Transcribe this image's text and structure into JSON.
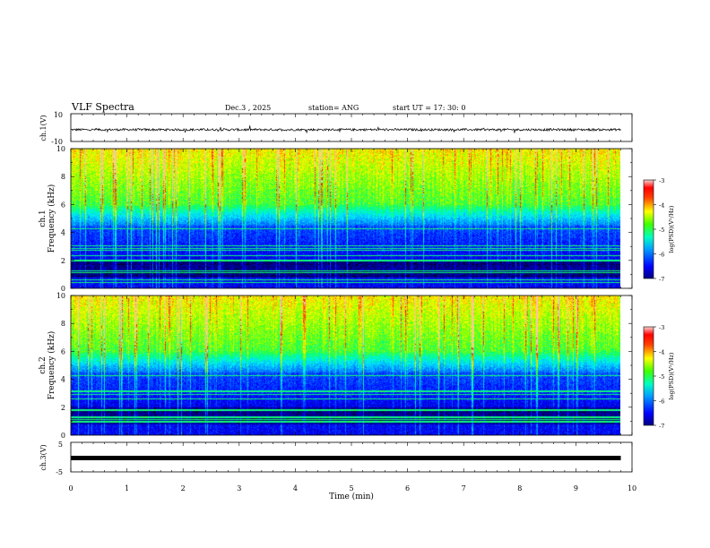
{
  "header": {
    "title": "VLF Spectra",
    "date": "Dec.3  , 2025",
    "station": "station= ANG",
    "start": "start  UT  =    17: 30: 0"
  },
  "colors": {
    "spectrogram": [
      "#000000",
      "#00008b",
      "#0000ff",
      "#0080ff",
      "#00ffff",
      "#00ff80",
      "#80ff00",
      "#ffff00",
      "#ff8000",
      "#ff0000",
      "#ffc0c0"
    ]
  },
  "chart_data": [
    {
      "type": "line",
      "name": "ch1-waveform",
      "ylabel": "ch.1(V)",
      "ylim": [
        -10,
        10
      ],
      "ytick_labels": [
        "10",
        "-10"
      ],
      "xlim": [
        0,
        10
      ],
      "baseline": -1.5,
      "noise_amplitude": 0.8
    },
    {
      "type": "heatmap",
      "name": "ch1-spectrogram",
      "ylabel_line1": "ch.1",
      "ylabel_line2": "Frequency  (kHz)",
      "ylim": [
        0,
        10
      ],
      "yticks": [
        0,
        2,
        4,
        6,
        8,
        10
      ],
      "ytick_labels": [
        "0",
        "2",
        "4",
        "6",
        "8",
        "10"
      ],
      "xlim": [
        0,
        10
      ],
      "data_end": 9.8,
      "colorbar": {
        "label": "log(PSD)(V²/Hz)",
        "range": [
          -7,
          -3
        ],
        "ticks": [
          -7,
          -6,
          -5,
          -4,
          -3
        ],
        "tick_labels": [
          "-7",
          "-6",
          "-5",
          "-4",
          "-3"
        ]
      }
    },
    {
      "type": "heatmap",
      "name": "ch2-spectrogram",
      "ylabel_line1": "ch.2",
      "ylabel_line2": "Frequency  (kHz)",
      "ylim": [
        0,
        10
      ],
      "yticks": [
        0,
        2,
        4,
        6,
        8,
        10
      ],
      "ytick_labels": [
        "0",
        "2",
        "4",
        "6",
        "8",
        "10"
      ],
      "xlim": [
        0,
        10
      ],
      "data_end": 9.8,
      "colorbar": {
        "label": "log(PSD)(V²/Hz)",
        "range": [
          -7,
          -3
        ],
        "ticks": [
          -7,
          -6,
          -5,
          -4,
          -3
        ],
        "tick_labels": [
          "-7",
          "-6",
          "-5",
          "-4",
          "-3"
        ]
      }
    },
    {
      "type": "line",
      "name": "ch3-level",
      "ylabel": "ch.3(V)",
      "ylim": [
        -5,
        5
      ],
      "ytick_labels": [
        "5",
        "-5"
      ],
      "xlim": [
        0,
        10
      ],
      "baseline": 0
    }
  ],
  "xaxis": {
    "label": "Time  (min)",
    "ticks": [
      0,
      1,
      2,
      3,
      4,
      5,
      6,
      7,
      8,
      9,
      10
    ],
    "tick_labels": [
      "0",
      "1",
      "2",
      "3",
      "4",
      "5",
      "6",
      "7",
      "8",
      "9",
      "10"
    ]
  }
}
